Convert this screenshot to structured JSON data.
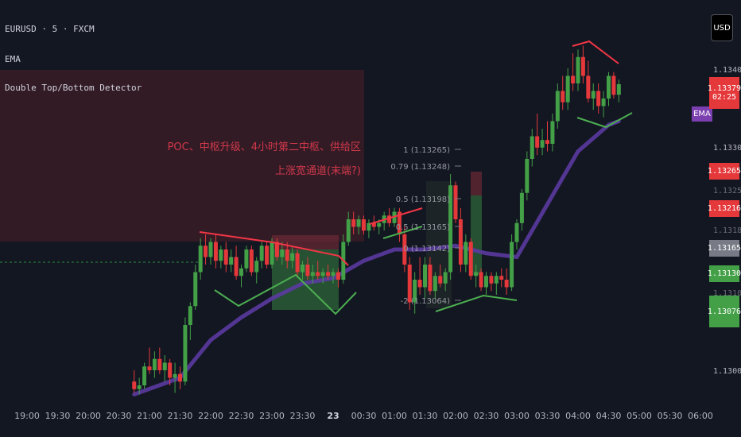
{
  "legend": {
    "symbol_line": "EURUSD · 5 · FXCM",
    "indicator_1": "EMA",
    "indicator_2": "Double Top/Bottom Detector"
  },
  "toolbar": {
    "currency_label": "USD"
  },
  "zone": {
    "line1": "POC、中枢升级、4小时第二中枢、供给区",
    "line2": "上涨宽通道(末端?)"
  },
  "fib": {
    "labels": [
      "1 (1.13265)",
      "0.79 (1.13248)",
      "0.5 (1.13198)",
      "0.5 (1.13165)",
      "0 (1.13142)",
      "-2 (1.13064)"
    ]
  },
  "price_axis": {
    "ticks": [
      "1.13400",
      "1.13300",
      "1.13000"
    ],
    "faint_ticks": [
      "1.13250",
      "1.13183",
      "1.13100"
    ]
  },
  "price_boxes": [
    {
      "name": "last-price",
      "value": "1.13379",
      "sub": "02:25",
      "color": "#e5383b"
    },
    {
      "name": "fib-high",
      "value": "1.13265",
      "sub": "",
      "color": "#e5383b"
    },
    {
      "name": "level-1",
      "value": "1.13216",
      "sub": "",
      "color": "#e5383b"
    },
    {
      "name": "level-2",
      "value": "1.13165",
      "sub": "",
      "color": "#787b86"
    },
    {
      "name": "level-3",
      "value": "1.13130",
      "sub": "",
      "color": "#43a047"
    },
    {
      "name": "level-4",
      "value": "1.13076",
      "sub": "",
      "color": "#43a047"
    }
  ],
  "ema_tag": "EMA",
  "time_axis": [
    "19:00",
    "19:30",
    "20:00",
    "20:30",
    "21:00",
    "21:30",
    "22:00",
    "22:30",
    "23:00",
    "23:30",
    "23",
    "00:30",
    "01:00",
    "01:30",
    "02:00",
    "02:30",
    "03:00",
    "03:30",
    "04:00",
    "04:30",
    "05:00",
    "05:30",
    "06:00"
  ],
  "colors": {
    "up": "#43a047",
    "down": "#e5383b",
    "ema": "#5b3aa0",
    "background": "#131722"
  },
  "chart_data": {
    "type": "candlestick",
    "title": "EURUSD · 5 · FXCM",
    "xlabel": "",
    "ylabel": "",
    "ylim": [
      1.1297,
      1.1344
    ],
    "grid": false,
    "candles": [
      {
        "t": "20:45",
        "o": 1.12985,
        "h": 1.13,
        "l": 1.1297,
        "c": 1.12975
      },
      {
        "t": "20:50",
        "o": 1.12975,
        "h": 1.1299,
        "l": 1.12968,
        "c": 1.1298
      },
      {
        "t": "20:55",
        "o": 1.1298,
        "h": 1.1301,
        "l": 1.12975,
        "c": 1.13005
      },
      {
        "t": "21:00",
        "o": 1.13005,
        "h": 1.1303,
        "l": 1.12995,
        "c": 1.13
      },
      {
        "t": "21:05",
        "o": 1.13,
        "h": 1.13025,
        "l": 1.1299,
        "c": 1.13015
      },
      {
        "t": "21:10",
        "o": 1.13015,
        "h": 1.1303,
        "l": 1.12995,
        "c": 1.13
      },
      {
        "t": "21:15",
        "o": 1.13,
        "h": 1.1302,
        "l": 1.12985,
        "c": 1.1301
      },
      {
        "t": "21:20",
        "o": 1.1301,
        "h": 1.13015,
        "l": 1.1298,
        "c": 1.1299
      },
      {
        "t": "21:25",
        "o": 1.1299,
        "h": 1.1301,
        "l": 1.1297,
        "c": 1.12995
      },
      {
        "t": "21:30",
        "o": 1.12995,
        "h": 1.13005,
        "l": 1.12975,
        "c": 1.12985
      },
      {
        "t": "21:35",
        "o": 1.12985,
        "h": 1.1307,
        "l": 1.1298,
        "c": 1.1306
      },
      {
        "t": "21:40",
        "o": 1.1306,
        "h": 1.1309,
        "l": 1.1304,
        "c": 1.13085
      },
      {
        "t": "21:45",
        "o": 1.13085,
        "h": 1.1314,
        "l": 1.1308,
        "c": 1.1313
      },
      {
        "t": "21:50",
        "o": 1.1313,
        "h": 1.13175,
        "l": 1.1312,
        "c": 1.13165
      },
      {
        "t": "21:55",
        "o": 1.13165,
        "h": 1.1318,
        "l": 1.1314,
        "c": 1.1315
      },
      {
        "t": "22:00",
        "o": 1.1315,
        "h": 1.13175,
        "l": 1.1314,
        "c": 1.1317
      },
      {
        "t": "22:05",
        "o": 1.1317,
        "h": 1.1318,
        "l": 1.13135,
        "c": 1.13145
      },
      {
        "t": "22:10",
        "o": 1.13145,
        "h": 1.13165,
        "l": 1.13135,
        "c": 1.1316
      },
      {
        "t": "22:15",
        "o": 1.1316,
        "h": 1.1317,
        "l": 1.1313,
        "c": 1.1314
      },
      {
        "t": "22:20",
        "o": 1.1314,
        "h": 1.1316,
        "l": 1.1313,
        "c": 1.1315
      },
      {
        "t": "22:25",
        "o": 1.1315,
        "h": 1.13165,
        "l": 1.1312,
        "c": 1.13125
      },
      {
        "t": "22:30",
        "o": 1.13125,
        "h": 1.1314,
        "l": 1.1311,
        "c": 1.13135
      },
      {
        "t": "22:35",
        "o": 1.13135,
        "h": 1.13165,
        "l": 1.1313,
        "c": 1.1316
      },
      {
        "t": "22:40",
        "o": 1.1316,
        "h": 1.13165,
        "l": 1.13125,
        "c": 1.1313
      },
      {
        "t": "22:45",
        "o": 1.1313,
        "h": 1.1315,
        "l": 1.13115,
        "c": 1.13145
      },
      {
        "t": "22:50",
        "o": 1.13145,
        "h": 1.1317,
        "l": 1.13135,
        "c": 1.13165
      },
      {
        "t": "22:55",
        "o": 1.13165,
        "h": 1.1317,
        "l": 1.13135,
        "c": 1.1314
      },
      {
        "t": "23:00",
        "o": 1.1314,
        "h": 1.13175,
        "l": 1.13135,
        "c": 1.1317
      },
      {
        "t": "23:05",
        "o": 1.1317,
        "h": 1.13175,
        "l": 1.13145,
        "c": 1.1315
      },
      {
        "t": "23:10",
        "o": 1.1315,
        "h": 1.1317,
        "l": 1.1314,
        "c": 1.1316
      },
      {
        "t": "23:15",
        "o": 1.1316,
        "h": 1.1317,
        "l": 1.13135,
        "c": 1.13145
      },
      {
        "t": "23:20",
        "o": 1.13145,
        "h": 1.13165,
        "l": 1.13135,
        "c": 1.13155
      },
      {
        "t": "23:25",
        "o": 1.13155,
        "h": 1.1316,
        "l": 1.13125,
        "c": 1.1313
      },
      {
        "t": "23:30",
        "o": 1.1313,
        "h": 1.13145,
        "l": 1.1312,
        "c": 1.1314
      },
      {
        "t": "23:35",
        "o": 1.1314,
        "h": 1.1315,
        "l": 1.1312,
        "c": 1.13125
      },
      {
        "t": "23:40",
        "o": 1.13125,
        "h": 1.1314,
        "l": 1.13115,
        "c": 1.1313
      },
      {
        "t": "23:45",
        "o": 1.1313,
        "h": 1.13145,
        "l": 1.1312,
        "c": 1.13125
      },
      {
        "t": "23:50",
        "o": 1.13125,
        "h": 1.13135,
        "l": 1.13115,
        "c": 1.1313
      },
      {
        "t": "23:55",
        "o": 1.1313,
        "h": 1.1314,
        "l": 1.1312,
        "c": 1.13125
      },
      {
        "t": "00:00",
        "o": 1.13125,
        "h": 1.13135,
        "l": 1.13115,
        "c": 1.1313
      },
      {
        "t": "00:05",
        "o": 1.1313,
        "h": 1.13135,
        "l": 1.1311,
        "c": 1.1312
      },
      {
        "t": "00:10",
        "o": 1.1312,
        "h": 1.1318,
        "l": 1.13115,
        "c": 1.1317
      },
      {
        "t": "00:15",
        "o": 1.1317,
        "h": 1.1321,
        "l": 1.13165,
        "c": 1.132
      },
      {
        "t": "00:20",
        "o": 1.132,
        "h": 1.1321,
        "l": 1.1318,
        "c": 1.1319
      },
      {
        "t": "00:25",
        "o": 1.1319,
        "h": 1.13205,
        "l": 1.1318,
        "c": 1.132
      },
      {
        "t": "00:30",
        "o": 1.132,
        "h": 1.13205,
        "l": 1.1318,
        "c": 1.13185
      },
      {
        "t": "00:35",
        "o": 1.13185,
        "h": 1.132,
        "l": 1.13175,
        "c": 1.13195
      },
      {
        "t": "00:40",
        "o": 1.13195,
        "h": 1.13205,
        "l": 1.13185,
        "c": 1.1319
      },
      {
        "t": "00:45",
        "o": 1.1319,
        "h": 1.132,
        "l": 1.1318,
        "c": 1.13195
      },
      {
        "t": "00:50",
        "o": 1.13195,
        "h": 1.1321,
        "l": 1.13185,
        "c": 1.13205
      },
      {
        "t": "00:55",
        "o": 1.13205,
        "h": 1.13215,
        "l": 1.1319,
        "c": 1.13195
      },
      {
        "t": "01:00",
        "o": 1.13195,
        "h": 1.13215,
        "l": 1.1319,
        "c": 1.1321
      },
      {
        "t": "01:05",
        "o": 1.1321,
        "h": 1.13215,
        "l": 1.1317,
        "c": 1.1318
      },
      {
        "t": "01:10",
        "o": 1.1318,
        "h": 1.1319,
        "l": 1.1313,
        "c": 1.1314
      },
      {
        "t": "01:15",
        "o": 1.1314,
        "h": 1.1315,
        "l": 1.1308,
        "c": 1.1309
      },
      {
        "t": "01:20",
        "o": 1.1309,
        "h": 1.1313,
        "l": 1.13075,
        "c": 1.1312
      },
      {
        "t": "01:25",
        "o": 1.1312,
        "h": 1.1315,
        "l": 1.131,
        "c": 1.1311
      },
      {
        "t": "01:30",
        "o": 1.1311,
        "h": 1.1315,
        "l": 1.13095,
        "c": 1.1314
      },
      {
        "t": "01:35",
        "o": 1.1314,
        "h": 1.1315,
        "l": 1.131,
        "c": 1.13105
      },
      {
        "t": "01:40",
        "o": 1.13105,
        "h": 1.1313,
        "l": 1.13095,
        "c": 1.13125
      },
      {
        "t": "01:45",
        "o": 1.13125,
        "h": 1.1314,
        "l": 1.1311,
        "c": 1.13115
      },
      {
        "t": "01:50",
        "o": 1.13115,
        "h": 1.13135,
        "l": 1.13105,
        "c": 1.1313
      },
      {
        "t": "01:55",
        "o": 1.1313,
        "h": 1.1326,
        "l": 1.1312,
        "c": 1.13245
      },
      {
        "t": "02:00",
        "o": 1.13245,
        "h": 1.1325,
        "l": 1.13195,
        "c": 1.132
      },
      {
        "t": "02:05",
        "o": 1.132,
        "h": 1.13215,
        "l": 1.1313,
        "c": 1.1314
      },
      {
        "t": "02:10",
        "o": 1.1314,
        "h": 1.1318,
        "l": 1.1313,
        "c": 1.1317
      },
      {
        "t": "02:15",
        "o": 1.1317,
        "h": 1.13175,
        "l": 1.1312,
        "c": 1.13125
      },
      {
        "t": "02:20",
        "o": 1.13125,
        "h": 1.1314,
        "l": 1.1311,
        "c": 1.1313
      },
      {
        "t": "02:25",
        "o": 1.1313,
        "h": 1.13135,
        "l": 1.13105,
        "c": 1.1311
      },
      {
        "t": "02:30",
        "o": 1.1311,
        "h": 1.1313,
        "l": 1.131,
        "c": 1.13125
      },
      {
        "t": "02:35",
        "o": 1.13125,
        "h": 1.1313,
        "l": 1.13105,
        "c": 1.13115
      },
      {
        "t": "02:40",
        "o": 1.13115,
        "h": 1.1313,
        "l": 1.131,
        "c": 1.13125
      },
      {
        "t": "02:45",
        "o": 1.13125,
        "h": 1.13135,
        "l": 1.1311,
        "c": 1.1312
      },
      {
        "t": "02:50",
        "o": 1.1312,
        "h": 1.13135,
        "l": 1.131,
        "c": 1.1311
      },
      {
        "t": "02:55",
        "o": 1.1311,
        "h": 1.1318,
        "l": 1.13105,
        "c": 1.1317
      },
      {
        "t": "03:00",
        "o": 1.1317,
        "h": 1.132,
        "l": 1.1316,
        "c": 1.13195
      },
      {
        "t": "03:05",
        "o": 1.13195,
        "h": 1.1324,
        "l": 1.13185,
        "c": 1.13235
      },
      {
        "t": "03:10",
        "o": 1.13235,
        "h": 1.1329,
        "l": 1.13225,
        "c": 1.1328
      },
      {
        "t": "03:15",
        "o": 1.1328,
        "h": 1.1332,
        "l": 1.1327,
        "c": 1.1331
      },
      {
        "t": "03:20",
        "o": 1.1331,
        "h": 1.1334,
        "l": 1.13285,
        "c": 1.13295
      },
      {
        "t": "03:25",
        "o": 1.13295,
        "h": 1.1332,
        "l": 1.13285,
        "c": 1.13305
      },
      {
        "t": "03:30",
        "o": 1.13305,
        "h": 1.1333,
        "l": 1.1329,
        "c": 1.133
      },
      {
        "t": "03:35",
        "o": 1.133,
        "h": 1.1334,
        "l": 1.1329,
        "c": 1.1333
      },
      {
        "t": "03:40",
        "o": 1.1333,
        "h": 1.1338,
        "l": 1.1332,
        "c": 1.1337
      },
      {
        "t": "03:45",
        "o": 1.1337,
        "h": 1.1339,
        "l": 1.13345,
        "c": 1.13355
      },
      {
        "t": "03:50",
        "o": 1.13355,
        "h": 1.134,
        "l": 1.13345,
        "c": 1.1339
      },
      {
        "t": "03:55",
        "o": 1.1339,
        "h": 1.1342,
        "l": 1.1337,
        "c": 1.1338
      },
      {
        "t": "04:00",
        "o": 1.1338,
        "h": 1.13425,
        "l": 1.1337,
        "c": 1.13415
      },
      {
        "t": "04:05",
        "o": 1.13415,
        "h": 1.1343,
        "l": 1.1338,
        "c": 1.1339
      },
      {
        "t": "04:10",
        "o": 1.1339,
        "h": 1.1341,
        "l": 1.13355,
        "c": 1.1336
      },
      {
        "t": "04:15",
        "o": 1.1336,
        "h": 1.1338,
        "l": 1.13345,
        "c": 1.1337
      },
      {
        "t": "04:20",
        "o": 1.1337,
        "h": 1.1338,
        "l": 1.1334,
        "c": 1.1335
      },
      {
        "t": "04:25",
        "o": 1.1335,
        "h": 1.1337,
        "l": 1.13335,
        "c": 1.1336
      },
      {
        "t": "04:30",
        "o": 1.1336,
        "h": 1.13395,
        "l": 1.1335,
        "c": 1.1339
      },
      {
        "t": "04:35",
        "o": 1.1339,
        "h": 1.13395,
        "l": 1.1336,
        "c": 1.13365
      },
      {
        "t": "04:40",
        "o": 1.13365,
        "h": 1.13385,
        "l": 1.13355,
        "c": 1.13379
      }
    ],
    "ema": [
      {
        "t": "20:45",
        "v": 1.12968
      },
      {
        "t": "21:30",
        "v": 1.1299
      },
      {
        "t": "22:00",
        "v": 1.1304
      },
      {
        "t": "22:30",
        "v": 1.1307
      },
      {
        "t": "23:00",
        "v": 1.13095
      },
      {
        "t": "23:30",
        "v": 1.13115
      },
      {
        "t": "00:00",
        "v": 1.13122
      },
      {
        "t": "00:30",
        "v": 1.13145
      },
      {
        "t": "01:00",
        "v": 1.1316
      },
      {
        "t": "01:30",
        "v": 1.1316
      },
      {
        "t": "02:00",
        "v": 1.13165
      },
      {
        "t": "02:30",
        "v": 1.13155
      },
      {
        "t": "03:00",
        "v": 1.1315
      },
      {
        "t": "03:30",
        "v": 1.1322
      },
      {
        "t": "04:00",
        "v": 1.1329
      },
      {
        "t": "04:30",
        "v": 1.13325
      },
      {
        "t": "04:40",
        "v": 1.1333
      }
    ]
  }
}
